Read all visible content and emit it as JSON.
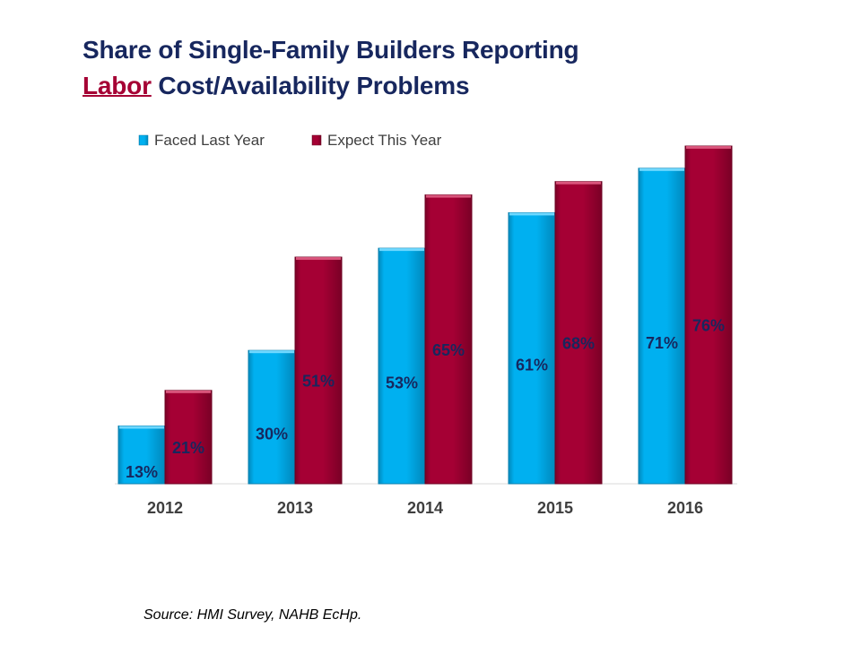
{
  "title": {
    "line1": "Share of Single-Family Builders Reporting",
    "emphasis": "Labor",
    "line2_rest": " Cost/Availability Problems"
  },
  "source": "Source: HMI Survey, NAHB EcHp.",
  "colors": {
    "faced": "#00b0f0",
    "faced_dark": "#0088bb",
    "expect": "#a50034",
    "expect_dark": "#7a0026",
    "title": "#17275e"
  },
  "chart_data": {
    "type": "bar",
    "title": "Share of Single-Family Builders Reporting Labor Cost/Availability Problems",
    "xlabel": "",
    "ylabel": "",
    "categories": [
      "2012",
      "2013",
      "2014",
      "2015",
      "2016"
    ],
    "series": [
      {
        "name": "Faced Last Year",
        "values": [
          13,
          30,
          53,
          61,
          71
        ]
      },
      {
        "name": "Expect This Year",
        "values": [
          21,
          51,
          65,
          68,
          76
        ]
      }
    ],
    "value_suffix": "%",
    "ylim": [
      0,
      76
    ],
    "legend": "top-left",
    "grid": false
  }
}
